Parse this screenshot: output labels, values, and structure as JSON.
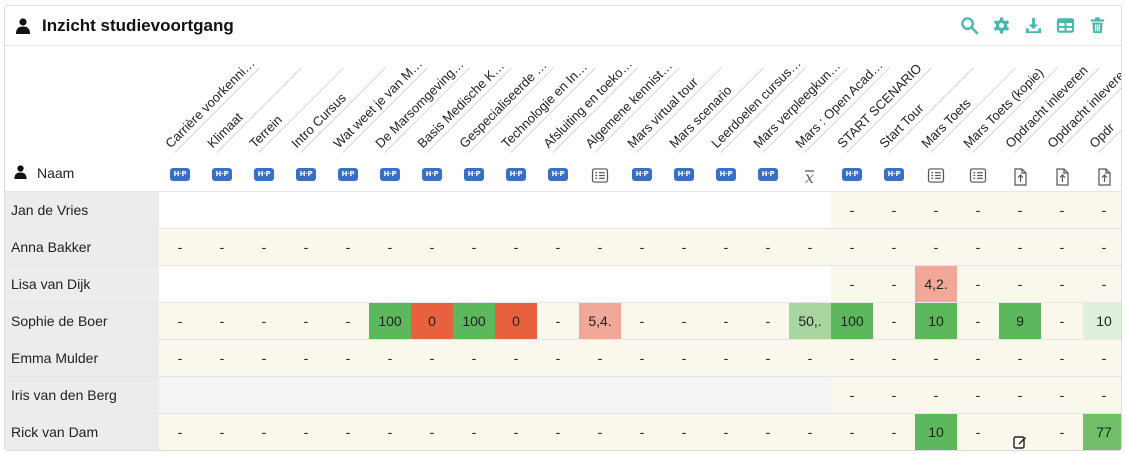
{
  "header": {
    "title": "Inzicht studievoortgang",
    "title_icon": "user-icon",
    "tools": [
      "search-icon",
      "gear-icon",
      "download-icon",
      "table-icon",
      "trash-icon"
    ],
    "accent_color": "#4db6ac"
  },
  "name_column": {
    "label": "Naam",
    "icon": "user-icon"
  },
  "columns": [
    {
      "label": "Carrière voorkennis...",
      "type": "hp"
    },
    {
      "label": "Klimaat",
      "type": "hp"
    },
    {
      "label": "Terrein",
      "type": "hp"
    },
    {
      "label": "Intro Cursus",
      "type": "hp"
    },
    {
      "label": "Wat weet je van Mars...",
      "type": "hp"
    },
    {
      "label": "De Marsomgeving en G...",
      "type": "hp"
    },
    {
      "label": "Basis Medische Kenni...",
      "type": "hp"
    },
    {
      "label": "Gespecialiseerde Zor...",
      "type": "hp"
    },
    {
      "label": "Technologie en Innov...",
      "type": "hp"
    },
    {
      "label": "Afsluiting en toekom...",
      "type": "hp"
    },
    {
      "label": "Algemene kennistoets",
      "type": "quiz"
    },
    {
      "label": "Mars virtual tour",
      "type": "hp"
    },
    {
      "label": "Mars scenario",
      "type": "hp"
    },
    {
      "label": "Leerdoelen cursusbre...",
      "type": "hp"
    },
    {
      "label": "Mars verpleegkunde b...",
      "type": "hp"
    },
    {
      "label": "Mars : Open Academy",
      "type": "mean"
    },
    {
      "label": "START SCENARIO",
      "type": "hp"
    },
    {
      "label": "Start Tour",
      "type": "hp"
    },
    {
      "label": "Mars Toets",
      "type": "quiz"
    },
    {
      "label": "Mars Toets (kopie)",
      "type": "quiz"
    },
    {
      "label": "Opdracht inleveren",
      "type": "upload"
    },
    {
      "label": "Opdracht inleveren",
      "type": "upload"
    },
    {
      "label": "Opdr",
      "type": "upload"
    }
  ],
  "type_icons": {
    "hp": "hp-icon",
    "hp_text": "H·P",
    "quiz": "quiz-icon",
    "mean": "mean-icon",
    "upload": "upload-file-icon"
  },
  "rows": [
    {
      "name": "Jan de Vries",
      "cells": [
        "",
        "",
        "",
        "",
        "",
        "",
        "",
        "",
        "",
        "",
        "",
        "",
        "",
        "",
        "",
        "",
        "-",
        "-",
        "-",
        "-",
        "-",
        "-",
        "-"
      ]
    },
    {
      "name": "Anna Bakker",
      "cells": [
        "-",
        "-",
        "-",
        "-",
        "-",
        "-",
        "-",
        "-",
        "-",
        "-",
        "-",
        "-",
        "-",
        "-",
        "-",
        "-",
        "-",
        "-",
        "-",
        "-",
        "-",
        "-",
        "-"
      ]
    },
    {
      "name": "Lisa van Dijk",
      "cells": [
        "",
        "",
        "",
        "",
        "",
        "",
        "",
        "",
        "",
        "",
        "",
        "",
        "",
        "",
        "",
        "",
        "-",
        "-",
        "4,2.",
        "-",
        "-",
        "-",
        "-"
      ]
    },
    {
      "name": "Sophie de Boer",
      "cells": [
        "-",
        "-",
        "-",
        "-",
        "-",
        "100",
        "0",
        "100",
        "0",
        "-",
        "5,4.",
        "-",
        "-",
        "-",
        "-",
        "50,.",
        "100",
        "-",
        "10",
        "-",
        "9",
        "-",
        "10"
      ]
    },
    {
      "name": "Emma Mulder",
      "cells": [
        "-",
        "-",
        "-",
        "-",
        "-",
        "-",
        "-",
        "-",
        "-",
        "-",
        "-",
        "-",
        "-",
        "-",
        "-",
        "-",
        "-",
        "-",
        "-",
        "-",
        "-",
        "-",
        "-"
      ]
    },
    {
      "name": "Iris van den Berg",
      "cells": [
        "",
        "",
        "",
        "",
        "",
        "",
        "",
        "",
        "",
        "",
        "",
        "",
        "",
        "",
        "",
        "",
        "-",
        "-",
        "-",
        "-",
        "-",
        "-",
        "-"
      ]
    },
    {
      "name": "Rick van Dam",
      "cells": [
        "-",
        "-",
        "-",
        "-",
        "-",
        "-",
        "-",
        "-",
        "-",
        "-",
        "-",
        "-",
        "-",
        "-",
        "-",
        "-",
        "-",
        "-",
        "10",
        "-",
        "edit",
        "-",
        "77"
      ]
    }
  ],
  "cell_colors": {
    "Sophie de Boer": {
      "5": "#5cb85c",
      "6": "#e8613f",
      "7": "#5cb85c",
      "8": "#e8613f",
      "10": "#f0a899",
      "15": "#a8d5a0",
      "16": "#5cb85c",
      "18": "#5cb85c",
      "20": "#5cb85c",
      "22": "#dff0dc"
    },
    "Lisa van Dijk": {
      "18": "#f0a899"
    },
    "Rick van Dam": {
      "18": "#5cb85c",
      "22": "#6fbe68"
    }
  },
  "row_backgrounds": {
    "light": "#ffffff",
    "band": "#faf8ec",
    "grey": "#f4f4f4"
  }
}
